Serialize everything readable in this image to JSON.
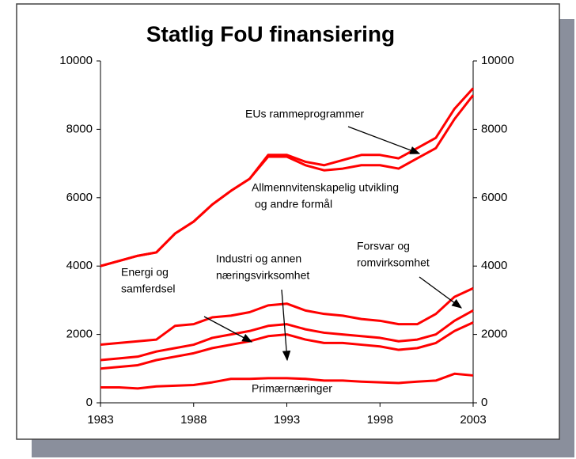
{
  "chart_data": {
    "type": "line",
    "title": "Statlig FoU finansiering",
    "x": [
      1983,
      1984,
      1985,
      1986,
      1987,
      1988,
      1989,
      1990,
      1991,
      1992,
      1993,
      1994,
      1995,
      1996,
      1997,
      1998,
      1999,
      2000,
      2001,
      2002,
      2003
    ],
    "xlim": [
      1983,
      2003
    ],
    "xticks": [
      1983,
      1988,
      1993,
      1998,
      2003
    ],
    "ylim": [
      0,
      10000
    ],
    "yticks": [
      0,
      2000,
      4000,
      6000,
      8000,
      10000
    ],
    "y2lim": [
      0,
      10000
    ],
    "y2ticks": [
      0,
      2000,
      4000,
      6000,
      8000,
      10000
    ],
    "series": [
      {
        "color": "#ff0000",
        "values": [
          4000,
          4150,
          4300,
          4400,
          4950,
          5300,
          5800,
          6200,
          6550,
          7250,
          7250,
          7050,
          6950,
          7100,
          7250,
          7250,
          7150,
          7450,
          7750,
          8600,
          9200
        ]
      },
      {
        "color": "#ff0000",
        "values": [
          4000,
          4150,
          4300,
          4400,
          4950,
          5300,
          5800,
          6200,
          6550,
          7200,
          7200,
          6950,
          6800,
          6850,
          6950,
          6950,
          6850,
          7150,
          7450,
          8300,
          9000
        ]
      },
      {
        "color": "#ff0000",
        "values": [
          1700,
          1750,
          1800,
          1850,
          2250,
          2300,
          2500,
          2550,
          2650,
          2850,
          2900,
          2700,
          2600,
          2550,
          2450,
          2400,
          2300,
          2300,
          2600,
          3100,
          3350
        ]
      },
      {
        "color": "#ff0000",
        "values": [
          1250,
          1300,
          1350,
          1500,
          1600,
          1700,
          1900,
          2000,
          2100,
          2250,
          2300,
          2150,
          2050,
          2000,
          1950,
          1900,
          1800,
          1850,
          2000,
          2400,
          2700
        ]
      },
      {
        "color": "#ff0000",
        "values": [
          1000,
          1050,
          1100,
          1250,
          1350,
          1450,
          1600,
          1700,
          1800,
          1950,
          2000,
          1850,
          1750,
          1750,
          1700,
          1650,
          1550,
          1600,
          1750,
          2100,
          2350
        ]
      },
      {
        "color": "#ff0000",
        "values": [
          450,
          450,
          420,
          480,
          500,
          520,
          600,
          700,
          700,
          720,
          720,
          700,
          650,
          650,
          620,
          600,
          580,
          620,
          650,
          850,
          800
        ]
      }
    ],
    "annotations": [
      {
        "text": [
          "EUs rammeprogrammer"
        ]
      },
      {
        "text": [
          "Allmennvitenskapelig utvikling",
          "og andre formål"
        ]
      },
      {
        "text": [
          "Industri og annen",
          "næringsvirksomhet"
        ]
      },
      {
        "text": [
          "Energi og",
          "samferdsel"
        ]
      },
      {
        "text": [
          "Forsvar og",
          "romvirksomhet"
        ]
      },
      {
        "text": [
          "Primærnæringer"
        ]
      }
    ]
  }
}
